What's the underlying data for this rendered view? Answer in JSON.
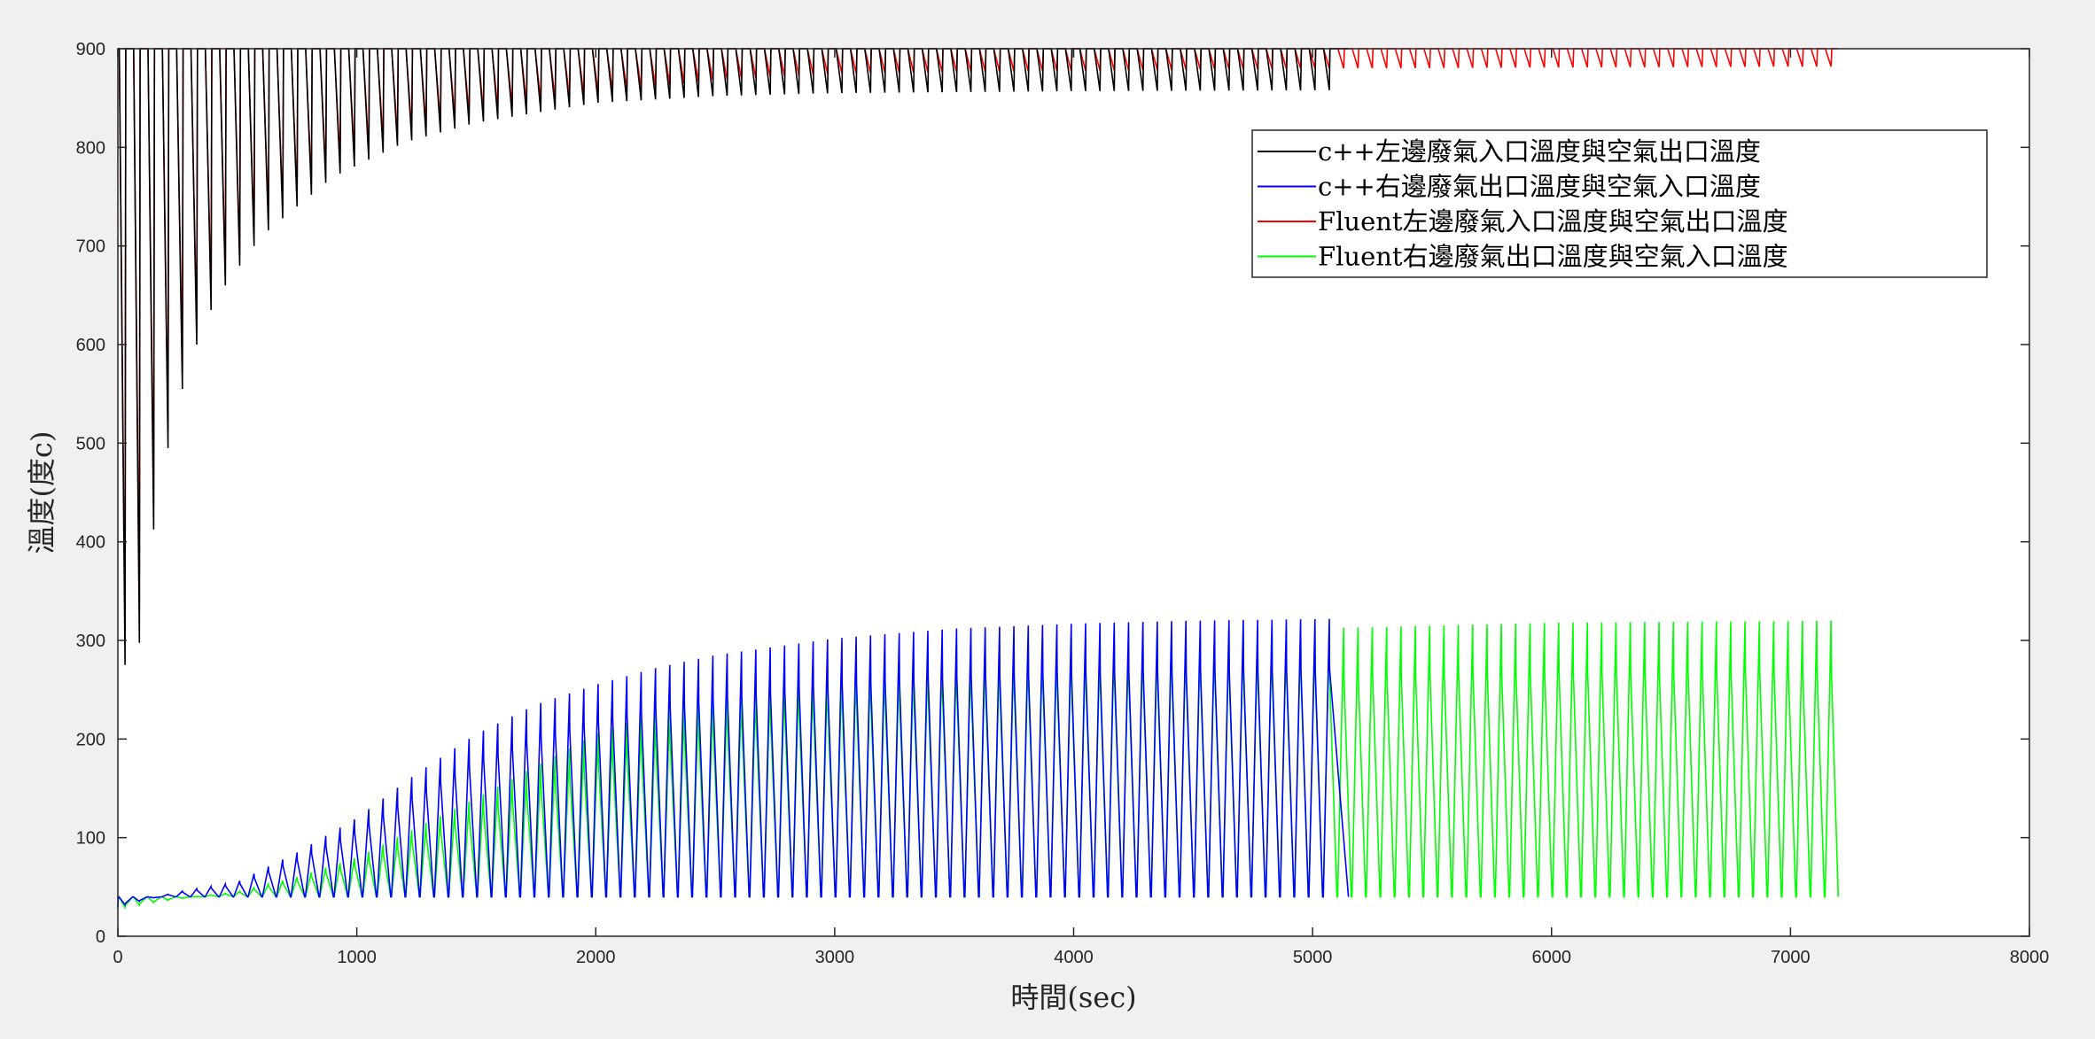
{
  "chart_data": {
    "type": "line",
    "xlabel": "時間(sec)",
    "ylabel": "溫度(度c)",
    "xlim": [
      0,
      8000
    ],
    "ylim": [
      0,
      900
    ],
    "xticks": [
      0,
      1000,
      2000,
      3000,
      4000,
      5000,
      6000,
      7000,
      8000
    ],
    "yticks": [
      0,
      100,
      200,
      300,
      400,
      500,
      600,
      700,
      800,
      900
    ],
    "grid": false,
    "legend_position": "top-right",
    "cycle_period_sec": 60,
    "series": [
      {
        "name": "c++左邊廢氣入口溫度與空氣出口溫度",
        "color": "#000000",
        "pattern": "sawtooth, high 900, rising minimum envelope",
        "x_end": 5150,
        "max": 900,
        "min_envelope": {
          "x": [
            0,
            60,
            120,
            180,
            240,
            300,
            360,
            420,
            600,
            900,
            1200,
            1500,
            2000,
            2500,
            3000,
            4000,
            5150
          ],
          "y": [
            320,
            230,
            365,
            460,
            530,
            580,
            620,
            650,
            710,
            770,
            805,
            825,
            845,
            852,
            855,
            857,
            858
          ]
        }
      },
      {
        "name": "c++右邊廢氣出口溫度與空氣入口溫度",
        "color": "#0000ff",
        "pattern": "sawtooth, low ~40, rising maximum envelope",
        "x_end": 5150,
        "min": 40,
        "max_envelope": {
          "x": [
            0,
            250,
            500,
            750,
            1000,
            1250,
            1500,
            1750,
            2000,
            2250,
            2500,
            3000,
            3500,
            4000,
            4500,
            5150
          ],
          "y": [
            30,
            45,
            55,
            85,
            120,
            165,
            205,
            235,
            255,
            272,
            285,
            302,
            312,
            317,
            320,
            322
          ]
        }
      },
      {
        "name": "Fluent左邊廢氣入口溫度與空氣出口溫度",
        "color": "#ff0000",
        "pattern": "sawtooth, high 900, rising minimum envelope",
        "x_end": 7200,
        "max": 900,
        "min_envelope": {
          "x": [
            0,
            60,
            120,
            180,
            240,
            300,
            360,
            420,
            600,
            900,
            1200,
            1500,
            2000,
            2500,
            3000,
            5000,
            7200
          ],
          "y": [
            350,
            260,
            395,
            480,
            545,
            595,
            635,
            660,
            720,
            780,
            815,
            835,
            855,
            868,
            875,
            880,
            882
          ]
        }
      },
      {
        "name": "Fluent右邊廢氣出口溫度與空氣入口溫度",
        "color": "#00ff00",
        "pattern": "sawtooth, low ~40, rising maximum envelope",
        "x_end": 7200,
        "min": 40,
        "max_envelope": {
          "x": [
            0,
            250,
            500,
            750,
            1000,
            1500,
            2000,
            2500,
            3000,
            3500,
            4000,
            4500,
            5000,
            6000,
            7200
          ],
          "y": [
            28,
            38,
            45,
            60,
            80,
            140,
            205,
            248,
            275,
            292,
            302,
            308,
            312,
            318,
            320
          ]
        }
      }
    ]
  }
}
